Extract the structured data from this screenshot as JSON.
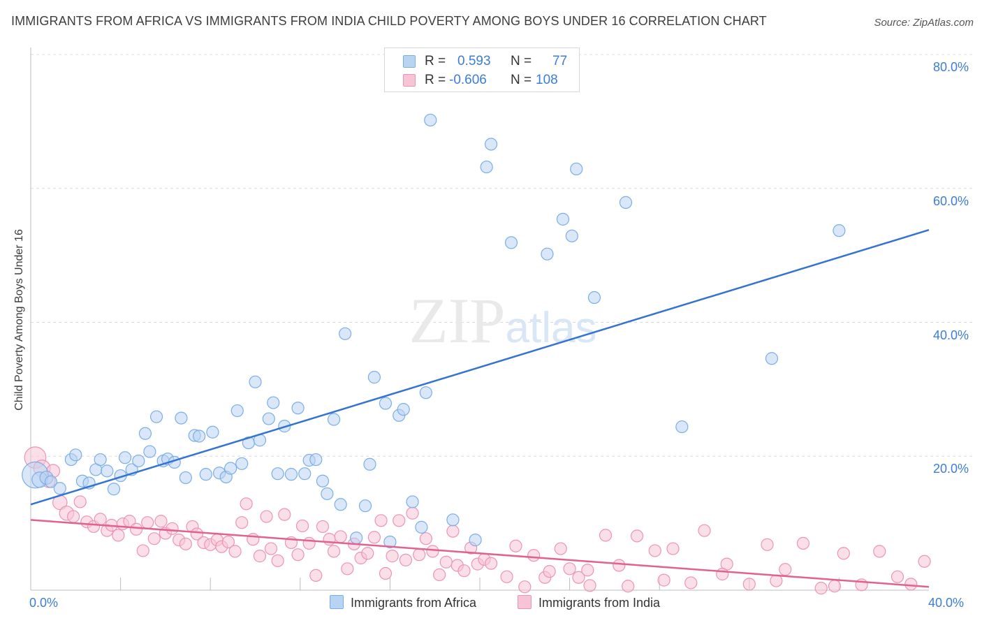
{
  "chart_data": {
    "type": "scatter",
    "title": "IMMIGRANTS FROM AFRICA VS IMMIGRANTS FROM INDIA CHILD POVERTY AMONG BOYS UNDER 16 CORRELATION CHART",
    "source": "Source: ZipAtlas.com",
    "watermark": "ZIPatlas",
    "xlabel": "",
    "ylabel": "Child Poverty Among Boys Under 16",
    "xlim": [
      0,
      40
    ],
    "ylim": [
      0,
      80
    ],
    "x_tick_labels": [
      "0.0%",
      "40.0%"
    ],
    "y_tick_labels": [
      "20.0%",
      "40.0%",
      "60.0%",
      "80.0%"
    ],
    "y_tick_values": [
      20,
      40,
      60,
      80
    ],
    "legend_stats": [
      {
        "r_label": "R =",
        "r_value": "0.593",
        "n_label": "N =",
        "n_value": "77"
      },
      {
        "r_label": "R =",
        "r_value": "-0.606",
        "n_label": "N =",
        "n_value": "108"
      }
    ],
    "series": [
      {
        "name": "Immigrants from Africa",
        "color": "#7aaee8",
        "fill": "#b9d4f3",
        "line_color": "#3474d0",
        "trend": [
          [
            0,
            12.8
          ],
          [
            40,
            53.8
          ]
        ],
        "points": [
          [
            0.2,
            17.2,
            2.2
          ],
          [
            0.4,
            16.5,
            1.3
          ],
          [
            0.7,
            16.8,
            1.1
          ],
          [
            0.9,
            16.2,
            1
          ],
          [
            1.3,
            15.2,
            1
          ],
          [
            1.8,
            19.5,
            1
          ],
          [
            2.0,
            20.2,
            1
          ],
          [
            2.3,
            16.3,
            1
          ],
          [
            2.6,
            16.0,
            1
          ],
          [
            2.9,
            18.0,
            1
          ],
          [
            3.1,
            19.5,
            1
          ],
          [
            3.4,
            17.8,
            1
          ],
          [
            3.7,
            15.1,
            1
          ],
          [
            4.0,
            17.1,
            1
          ],
          [
            4.2,
            19.8,
            1
          ],
          [
            4.5,
            18.0,
            1
          ],
          [
            4.8,
            19.3,
            1
          ],
          [
            5.1,
            23.4,
            1
          ],
          [
            5.3,
            20.7,
            1
          ],
          [
            5.6,
            25.9,
            1
          ],
          [
            5.9,
            19.3,
            1
          ],
          [
            6.1,
            19.6,
            1
          ],
          [
            6.4,
            19.1,
            1
          ],
          [
            6.7,
            25.7,
            1
          ],
          [
            6.9,
            16.8,
            1
          ],
          [
            7.3,
            23.1,
            1
          ],
          [
            7.5,
            23.0,
            1
          ],
          [
            7.8,
            17.3,
            1
          ],
          [
            8.1,
            23.6,
            1
          ],
          [
            8.4,
            17.5,
            1
          ],
          [
            8.7,
            16.9,
            1
          ],
          [
            8.9,
            18.2,
            1
          ],
          [
            9.2,
            26.8,
            1
          ],
          [
            9.4,
            18.9,
            1
          ],
          [
            9.7,
            22.0,
            1
          ],
          [
            10.0,
            31.1,
            1
          ],
          [
            10.2,
            22.4,
            1
          ],
          [
            10.6,
            25.6,
            1
          ],
          [
            10.8,
            28.0,
            1
          ],
          [
            11.0,
            17.4,
            1
          ],
          [
            11.3,
            24.5,
            1
          ],
          [
            11.6,
            17.3,
            1
          ],
          [
            11.9,
            27.2,
            1
          ],
          [
            12.2,
            17.4,
            1
          ],
          [
            12.4,
            19.4,
            1
          ],
          [
            12.7,
            19.5,
            1
          ],
          [
            13.0,
            16.3,
            1
          ],
          [
            13.2,
            14.4,
            1
          ],
          [
            13.5,
            25.5,
            1
          ],
          [
            13.8,
            12.8,
            1
          ],
          [
            14.0,
            38.3,
            1
          ],
          [
            14.5,
            7.8,
            1
          ],
          [
            14.9,
            12.6,
            1
          ],
          [
            15.1,
            18.8,
            1
          ],
          [
            15.3,
            31.8,
            1
          ],
          [
            15.8,
            27.9,
            1
          ],
          [
            16.0,
            7.2,
            1
          ],
          [
            16.4,
            26.1,
            1
          ],
          [
            16.6,
            27.0,
            1
          ],
          [
            17.0,
            13.2,
            1
          ],
          [
            17.4,
            9.4,
            1
          ],
          [
            17.6,
            29.5,
            1
          ],
          [
            17.8,
            70.2,
            1
          ],
          [
            18.8,
            10.5,
            1
          ],
          [
            19.8,
            7.5,
            1
          ],
          [
            20.3,
            63.2,
            1
          ],
          [
            20.5,
            66.6,
            1
          ],
          [
            21.4,
            51.9,
            1
          ],
          [
            23.0,
            50.2,
            1
          ],
          [
            23.7,
            55.4,
            1
          ],
          [
            24.1,
            52.9,
            1
          ],
          [
            24.3,
            62.9,
            1
          ],
          [
            25.1,
            43.7,
            1
          ],
          [
            26.5,
            57.9,
            1
          ],
          [
            29.0,
            24.4,
            1
          ],
          [
            33.0,
            34.6,
            1
          ],
          [
            36.0,
            53.7,
            1
          ]
        ]
      },
      {
        "name": "Immigrants from India",
        "color": "#eb94b5",
        "fill": "#f7c4d6",
        "line_color": "#e0628e",
        "trend": [
          [
            0,
            10.5
          ],
          [
            40,
            0.5
          ]
        ],
        "points": [
          [
            0.2,
            19.8,
            1.8
          ],
          [
            0.5,
            18.2,
            1.4
          ],
          [
            0.8,
            16.3,
            1.1
          ],
          [
            1.0,
            17.8,
            1.1
          ],
          [
            1.3,
            13.1,
            1.2
          ],
          [
            1.6,
            11.5,
            1.2
          ],
          [
            1.9,
            11.0,
            1
          ],
          [
            2.2,
            13.2,
            1
          ],
          [
            2.5,
            10.2,
            1
          ],
          [
            2.8,
            9.5,
            1
          ],
          [
            3.1,
            10.6,
            1
          ],
          [
            3.4,
            8.9,
            1
          ],
          [
            3.6,
            9.7,
            1
          ],
          [
            3.9,
            8.2,
            1
          ],
          [
            4.1,
            9.9,
            1
          ],
          [
            4.4,
            10.3,
            1
          ],
          [
            4.7,
            9.1,
            1
          ],
          [
            5.0,
            5.9,
            1
          ],
          [
            5.2,
            10.1,
            1
          ],
          [
            5.5,
            7.7,
            1
          ],
          [
            5.8,
            10.3,
            1
          ],
          [
            6.0,
            8.5,
            1
          ],
          [
            6.3,
            9.2,
            1
          ],
          [
            6.6,
            7.5,
            1
          ],
          [
            6.9,
            6.9,
            1
          ],
          [
            7.2,
            9.5,
            1
          ],
          [
            7.4,
            8.4,
            1
          ],
          [
            7.7,
            7.1,
            1
          ],
          [
            8.0,
            6.8,
            1
          ],
          [
            8.3,
            7.5,
            1
          ],
          [
            8.5,
            6.5,
            1
          ],
          [
            8.8,
            7.2,
            1
          ],
          [
            9.1,
            5.8,
            1
          ],
          [
            9.4,
            10.1,
            1
          ],
          [
            9.6,
            12.9,
            1
          ],
          [
            9.9,
            7.6,
            1
          ],
          [
            10.2,
            5.1,
            1
          ],
          [
            10.5,
            11.0,
            1
          ],
          [
            10.7,
            6.2,
            1
          ],
          [
            11.0,
            4.4,
            1
          ],
          [
            11.3,
            11.3,
            1
          ],
          [
            11.6,
            7.1,
            1
          ],
          [
            11.9,
            5.3,
            1
          ],
          [
            12.1,
            9.6,
            1
          ],
          [
            12.4,
            7.0,
            1
          ],
          [
            12.7,
            2.2,
            1
          ],
          [
            13.0,
            9.5,
            1
          ],
          [
            13.3,
            7.6,
            1
          ],
          [
            13.5,
            5.8,
            1
          ],
          [
            13.8,
            8.0,
            1
          ],
          [
            14.1,
            3.2,
            1
          ],
          [
            14.4,
            6.9,
            1
          ],
          [
            14.7,
            4.8,
            1
          ],
          [
            15.0,
            5.5,
            1
          ],
          [
            15.3,
            7.9,
            1
          ],
          [
            15.6,
            10.4,
            1
          ],
          [
            15.8,
            2.5,
            1
          ],
          [
            16.1,
            5.1,
            1
          ],
          [
            16.4,
            10.4,
            1
          ],
          [
            16.7,
            4.5,
            1
          ],
          [
            17.0,
            11.5,
            1
          ],
          [
            17.3,
            5.3,
            1
          ],
          [
            17.6,
            7.7,
            1
          ],
          [
            17.9,
            5.8,
            1
          ],
          [
            18.2,
            2.3,
            1
          ],
          [
            18.5,
            4.2,
            1
          ],
          [
            18.8,
            8.8,
            1
          ],
          [
            19.0,
            3.7,
            1
          ],
          [
            19.3,
            2.9,
            1
          ],
          [
            19.6,
            6.3,
            1
          ],
          [
            19.9,
            3.9,
            1
          ],
          [
            20.2,
            4.6,
            1
          ],
          [
            20.5,
            4.0,
            1
          ],
          [
            21.2,
            2.0,
            1
          ],
          [
            21.6,
            6.6,
            1
          ],
          [
            22.0,
            0.5,
            1
          ],
          [
            22.4,
            5.2,
            1
          ],
          [
            22.9,
            1.9,
            1
          ],
          [
            23.6,
            6.2,
            1
          ],
          [
            24.0,
            3.2,
            1
          ],
          [
            24.4,
            1.9,
            1
          ],
          [
            24.8,
            3.0,
            1
          ],
          [
            25.6,
            8.2,
            1
          ],
          [
            26.2,
            3.7,
            1
          ],
          [
            27.0,
            8.1,
            1
          ],
          [
            27.8,
            5.9,
            1
          ],
          [
            28.6,
            6.2,
            1
          ],
          [
            29.4,
            1.1,
            1
          ],
          [
            30.0,
            8.9,
            1
          ],
          [
            31.0,
            3.9,
            1
          ],
          [
            32.0,
            0.9,
            1
          ],
          [
            32.8,
            6.8,
            1
          ],
          [
            33.6,
            3.1,
            1
          ],
          [
            34.4,
            7.0,
            1
          ],
          [
            35.2,
            0.3,
            1
          ],
          [
            36.2,
            5.5,
            1
          ],
          [
            37.0,
            0.8,
            1
          ],
          [
            37.8,
            5.8,
            1
          ],
          [
            38.6,
            2.0,
            1
          ],
          [
            39.2,
            0.9,
            1
          ],
          [
            39.8,
            4.3,
            1
          ],
          [
            23.1,
            2.8,
            1
          ],
          [
            24.9,
            0.7,
            1
          ],
          [
            26.6,
            0.6,
            1
          ],
          [
            28.2,
            1.5,
            1
          ],
          [
            30.8,
            2.4,
            1
          ],
          [
            33.2,
            1.4,
            1
          ],
          [
            35.8,
            0.6,
            1
          ]
        ]
      }
    ]
  }
}
